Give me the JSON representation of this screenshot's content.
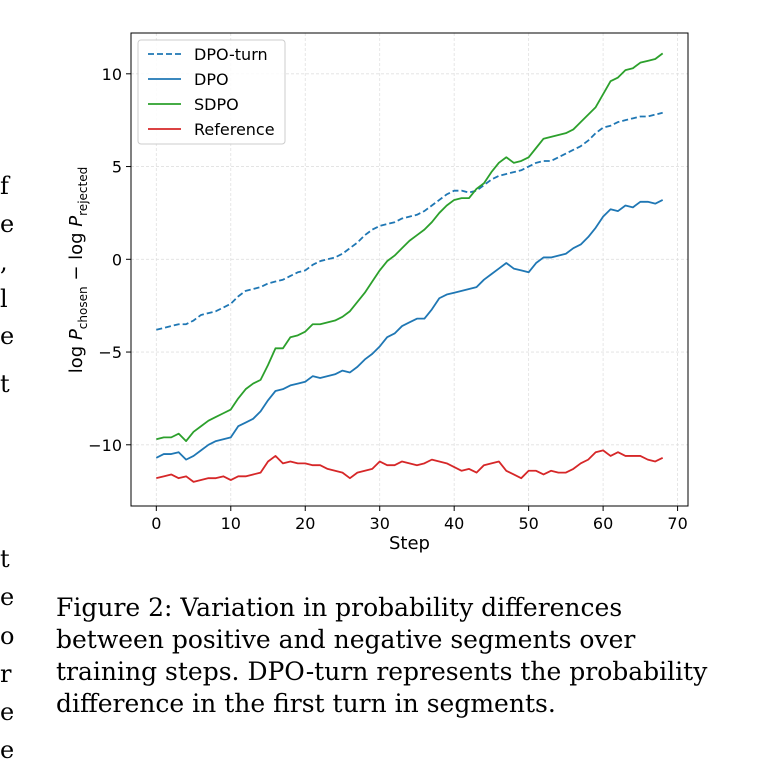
{
  "chart_data": {
    "type": "line",
    "title": "",
    "xlabel": "Step",
    "ylabel": "log P_chosen − log P_rejected",
    "xlim": [
      -3.4,
      71.4
    ],
    "ylim": [
      -13.3,
      12.2
    ],
    "xticks": [
      0,
      10,
      20,
      30,
      40,
      50,
      60,
      70
    ],
    "yticks": [
      -10,
      -5,
      0,
      5,
      10
    ],
    "tick_labels_x": [
      "0",
      "10",
      "20",
      "30",
      "40",
      "50",
      "60",
      "70"
    ],
    "tick_labels_y": [
      "−10",
      "−5",
      "0",
      "5",
      "10"
    ],
    "grid": true,
    "legend_position": "top-left",
    "x": [
      0,
      1,
      2,
      3,
      4,
      5,
      6,
      7,
      8,
      9,
      10,
      11,
      12,
      13,
      14,
      15,
      16,
      17,
      18,
      19,
      20,
      21,
      22,
      23,
      24,
      25,
      26,
      27,
      28,
      29,
      30,
      31,
      32,
      33,
      34,
      35,
      36,
      37,
      38,
      39,
      40,
      41,
      42,
      43,
      44,
      45,
      46,
      47,
      48,
      49,
      50,
      51,
      52,
      53,
      54,
      55,
      56,
      57,
      58,
      59,
      60,
      61,
      62,
      63,
      64,
      65,
      66,
      67,
      68
    ],
    "series": [
      {
        "name": "DPO-turn",
        "color": "#1f77b4",
        "dashed": true,
        "values": [
          -3.8,
          -3.7,
          -3.6,
          -3.5,
          -3.5,
          -3.3,
          -3.0,
          -2.9,
          -2.8,
          -2.6,
          -2.4,
          -2.0,
          -1.7,
          -1.6,
          -1.5,
          -1.3,
          -1.2,
          -1.1,
          -0.9,
          -0.7,
          -0.6,
          -0.3,
          -0.1,
          0.0,
          0.1,
          0.3,
          0.6,
          0.9,
          1.3,
          1.6,
          1.8,
          1.9,
          2.0,
          2.2,
          2.3,
          2.4,
          2.6,
          2.9,
          3.2,
          3.5,
          3.7,
          3.7,
          3.6,
          3.7,
          4.0,
          4.3,
          4.5,
          4.6,
          4.7,
          4.8,
          5.0,
          5.2,
          5.3,
          5.3,
          5.5,
          5.7,
          5.9,
          6.1,
          6.4,
          6.8,
          7.1,
          7.2,
          7.4,
          7.5,
          7.6,
          7.7,
          7.7,
          7.8,
          7.9
        ]
      },
      {
        "name": "DPO",
        "color": "#1f77b4",
        "dashed": false,
        "values": [
          -10.7,
          -10.5,
          -10.5,
          -10.4,
          -10.8,
          -10.6,
          -10.3,
          -10.0,
          -9.8,
          -9.7,
          -9.6,
          -9.0,
          -8.8,
          -8.6,
          -8.2,
          -7.6,
          -7.1,
          -7.0,
          -6.8,
          -6.7,
          -6.6,
          -6.3,
          -6.4,
          -6.3,
          -6.2,
          -6.0,
          -6.1,
          -5.8,
          -5.4,
          -5.1,
          -4.7,
          -4.2,
          -4.0,
          -3.6,
          -3.4,
          -3.2,
          -3.2,
          -2.7,
          -2.1,
          -1.9,
          -1.8,
          -1.7,
          -1.6,
          -1.5,
          -1.1,
          -0.8,
          -0.5,
          -0.2,
          -0.5,
          -0.6,
          -0.7,
          -0.2,
          0.1,
          0.1,
          0.2,
          0.3,
          0.6,
          0.8,
          1.2,
          1.7,
          2.3,
          2.7,
          2.6,
          2.9,
          2.8,
          3.1,
          3.1,
          3.0,
          3.2
        ]
      },
      {
        "name": "SDPO",
        "color": "#2ca02c",
        "dashed": false,
        "values": [
          -9.7,
          -9.6,
          -9.6,
          -9.4,
          -9.8,
          -9.3,
          -9.0,
          -8.7,
          -8.5,
          -8.3,
          -8.1,
          -7.5,
          -7.0,
          -6.7,
          -6.5,
          -5.7,
          -4.8,
          -4.8,
          -4.2,
          -4.1,
          -3.9,
          -3.5,
          -3.5,
          -3.4,
          -3.3,
          -3.1,
          -2.8,
          -2.3,
          -1.8,
          -1.2,
          -0.6,
          -0.1,
          0.2,
          0.6,
          1.0,
          1.3,
          1.6,
          2.0,
          2.5,
          2.9,
          3.2,
          3.3,
          3.3,
          3.8,
          4.1,
          4.7,
          5.2,
          5.5,
          5.2,
          5.3,
          5.5,
          6.0,
          6.5,
          6.6,
          6.7,
          6.8,
          7.0,
          7.4,
          7.8,
          8.2,
          8.9,
          9.6,
          9.8,
          10.2,
          10.3,
          10.6,
          10.7,
          10.8,
          11.1
        ]
      },
      {
        "name": "Reference",
        "color": "#d62728",
        "dashed": false,
        "values": [
          -11.8,
          -11.7,
          -11.6,
          -11.8,
          -11.7,
          -12.0,
          -11.9,
          -11.8,
          -11.8,
          -11.7,
          -11.9,
          -11.7,
          -11.7,
          -11.6,
          -11.5,
          -10.9,
          -10.6,
          -11.0,
          -10.9,
          -11.0,
          -11.0,
          -11.1,
          -11.1,
          -11.3,
          -11.4,
          -11.5,
          -11.8,
          -11.5,
          -11.4,
          -11.3,
          -10.9,
          -11.1,
          -11.1,
          -10.9,
          -11.0,
          -11.1,
          -11.0,
          -10.8,
          -10.9,
          -11.0,
          -11.2,
          -11.4,
          -11.3,
          -11.5,
          -11.1,
          -11.0,
          -10.9,
          -11.4,
          -11.6,
          -11.8,
          -11.4,
          -11.4,
          -11.6,
          -11.4,
          -11.5,
          -11.5,
          -11.3,
          -11.0,
          -10.8,
          -10.4,
          -10.3,
          -10.6,
          -10.4,
          -10.6,
          -10.6,
          -10.6,
          -10.8,
          -10.9,
          -10.7
        ]
      }
    ]
  },
  "caption": "Figure 2: Variation in probability differences between positive and negative segments over training steps. DPO-turn represents the probability difference in the first turn in segments.",
  "margin_glyphs": [
    "f",
    "e",
    ",",
    "l",
    "e",
    "t",
    "t",
    "e",
    "o",
    "r",
    "e",
    "e"
  ]
}
